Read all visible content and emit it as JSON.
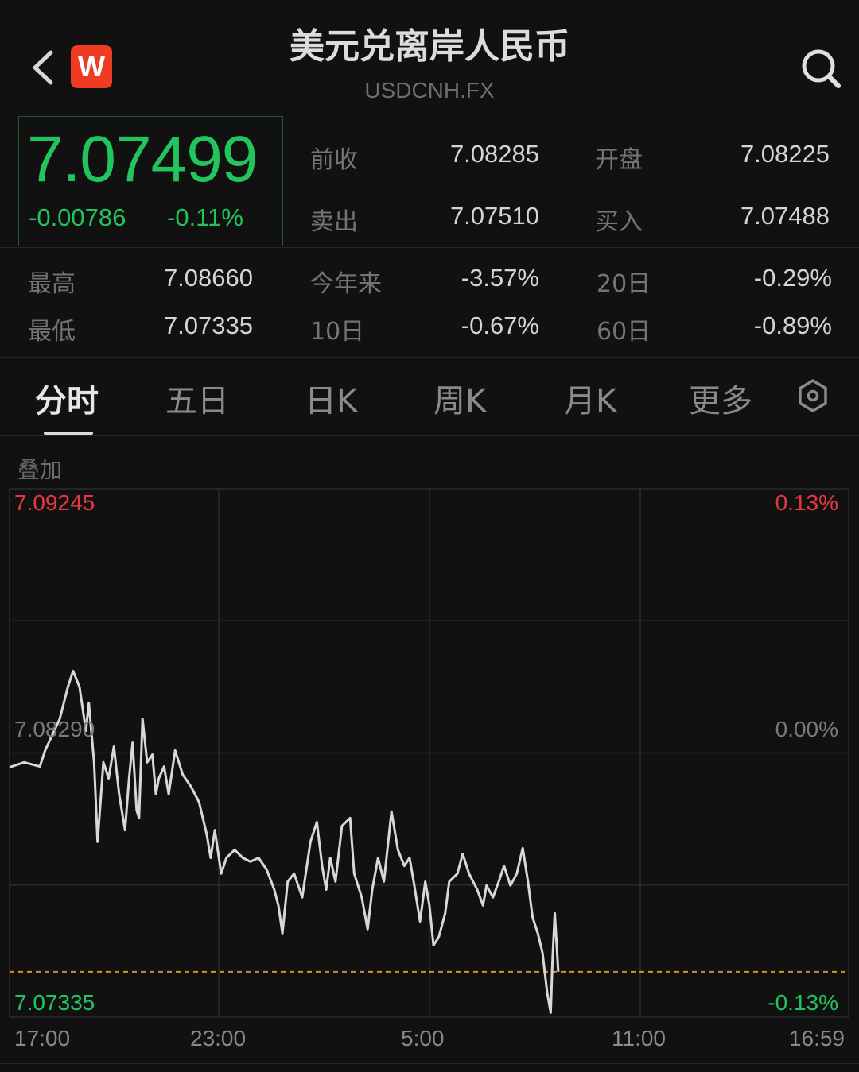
{
  "header": {
    "title": "美元兑离岸人民币",
    "symbol": "USDCNH.FX",
    "logo_letter": "W",
    "icons": [
      "back-chevron-icon",
      "app-logo-icon",
      "search-icon"
    ]
  },
  "quote": {
    "price": "7.07499",
    "change": "-0.00786",
    "change_pct": "-0.11%",
    "color": "#21c45d"
  },
  "stats": [
    {
      "label": "前收",
      "value": "7.08285"
    },
    {
      "label": "开盘",
      "value": "7.08225"
    },
    {
      "label": "卖出",
      "value": "7.07510"
    },
    {
      "label": "买入",
      "value": "7.07488"
    },
    {
      "label": "最高",
      "value": "7.08660"
    },
    {
      "label": "今年来",
      "value": "-3.57%"
    },
    {
      "label": "20日",
      "value": "-0.29%"
    },
    {
      "label": "最低",
      "value": "7.07335"
    },
    {
      "label": "10日",
      "value": "-0.67%"
    },
    {
      "label": "60日",
      "value": "-0.89%"
    }
  ],
  "tabs": [
    {
      "label": "分时",
      "active": true
    },
    {
      "label": "五日"
    },
    {
      "label": "日K"
    },
    {
      "label": "周K"
    },
    {
      "label": "月K"
    },
    {
      "label": "更多"
    }
  ],
  "overlay_label": "叠加",
  "chart_data": {
    "type": "line",
    "y_labels_left": {
      "top": "7.09245",
      "mid": "7.08290",
      "bottom": "7.07335"
    },
    "y_labels_right": {
      "top": "0.13%",
      "mid": "0.00%",
      "bottom": "-0.13%"
    },
    "ylim": [
      7.07335,
      7.09245
    ],
    "x_ticks": [
      "17:00",
      "23:00",
      "5:00",
      "11:00",
      "16:59"
    ],
    "xlim": [
      "17:00",
      "16:59"
    ],
    "current_price_line": 7.07499,
    "grid": true,
    "colors": {
      "line": "#d8d8d8",
      "up": "#e8383d",
      "down": "#21c45d",
      "current": "#e08a2c"
    },
    "series": [
      {
        "points": [
          [
            "17:00",
            7.08238
          ],
          [
            "17:25",
            7.08256
          ],
          [
            "17:52",
            7.08241
          ],
          [
            "18:01",
            7.08299
          ],
          [
            "18:26",
            7.08413
          ],
          [
            "18:40",
            7.08528
          ],
          [
            "18:49",
            7.08586
          ],
          [
            "19:00",
            7.08528
          ],
          [
            "19:11",
            7.0837
          ],
          [
            "19:16",
            7.08471
          ],
          [
            "19:25",
            7.08256
          ],
          [
            "19:31",
            7.07969
          ],
          [
            "19:41",
            7.08256
          ],
          [
            "19:50",
            7.08198
          ],
          [
            "19:59",
            7.08313
          ],
          [
            "20:08",
            7.08141
          ],
          [
            "20:18",
            7.08011
          ],
          [
            "20:25",
            7.08198
          ],
          [
            "20:31",
            7.08327
          ],
          [
            "20:38",
            7.08083
          ],
          [
            "20:42",
            7.08055
          ],
          [
            "20:48",
            7.08413
          ],
          [
            "20:56",
            7.08256
          ],
          [
            "21:05",
            7.08284
          ],
          [
            "21:11",
            7.08141
          ],
          [
            "21:16",
            7.08198
          ],
          [
            "21:25",
            7.08241
          ],
          [
            "21:33",
            7.08141
          ],
          [
            "21:44",
            7.08299
          ],
          [
            "21:57",
            7.08212
          ],
          [
            "22:11",
            7.08169
          ],
          [
            "22:25",
            7.08112
          ],
          [
            "22:38",
            7.07997
          ],
          [
            "22:45",
            7.07911
          ],
          [
            "22:52",
            7.08011
          ],
          [
            "23:03",
            7.07854
          ],
          [
            "23:12",
            7.07911
          ],
          [
            "23:26",
            7.0794
          ],
          [
            "23:40",
            7.07911
          ],
          [
            "23:53",
            7.07897
          ],
          [
            "00:07",
            7.07911
          ],
          [
            "00:21",
            7.07868
          ],
          [
            "00:34",
            7.07796
          ],
          [
            "00:41",
            7.07739
          ],
          [
            "00:48",
            7.07638
          ],
          [
            "00:57",
            7.07825
          ],
          [
            "01:08",
            7.07854
          ],
          [
            "01:22",
            7.07768
          ],
          [
            "01:36",
            7.07969
          ],
          [
            "01:47",
            7.0804
          ],
          [
            "01:56",
            7.07882
          ],
          [
            "02:03",
            7.07796
          ],
          [
            "02:10",
            7.07911
          ],
          [
            "02:19",
            7.07825
          ],
          [
            "02:30",
            7.08026
          ],
          [
            "02:44",
            7.08055
          ],
          [
            "02:51",
            7.07854
          ],
          [
            "03:04",
            7.07768
          ],
          [
            "03:14",
            7.07653
          ],
          [
            "03:22",
            7.07796
          ],
          [
            "03:32",
            7.07911
          ],
          [
            "03:42",
            7.07825
          ],
          [
            "03:55",
            7.08078
          ],
          [
            "04:06",
            7.0794
          ],
          [
            "04:17",
            7.07882
          ],
          [
            "04:26",
            7.07911
          ],
          [
            "04:33",
            7.07825
          ],
          [
            "04:44",
            7.07681
          ],
          [
            "04:53",
            7.07825
          ],
          [
            "05:00",
            7.07739
          ],
          [
            "05:07",
            7.07595
          ],
          [
            "05:16",
            7.07624
          ],
          [
            "05:27",
            7.0771
          ],
          [
            "05:34",
            7.07825
          ],
          [
            "05:48",
            7.07854
          ],
          [
            "05:57",
            7.07925
          ],
          [
            "06:08",
            7.07854
          ],
          [
            "06:22",
            7.07796
          ],
          [
            "06:32",
            7.07739
          ],
          [
            "06:38",
            7.07811
          ],
          [
            "06:49",
            7.07768
          ],
          [
            "06:59",
            7.07825
          ],
          [
            "07:08",
            7.07882
          ],
          [
            "07:19",
            7.07811
          ],
          [
            "07:30",
            7.07854
          ],
          [
            "07:40",
            7.07946
          ],
          [
            "07:49",
            7.07825
          ],
          [
            "07:57",
            7.07696
          ],
          [
            "08:06",
            7.07638
          ],
          [
            "08:14",
            7.07567
          ],
          [
            "08:22",
            7.07423
          ],
          [
            "08:28",
            7.07351
          ],
          [
            "08:31",
            7.07538
          ],
          [
            "08:35",
            7.0771
          ],
          [
            "08:41",
            7.07499
          ]
        ]
      }
    ]
  }
}
